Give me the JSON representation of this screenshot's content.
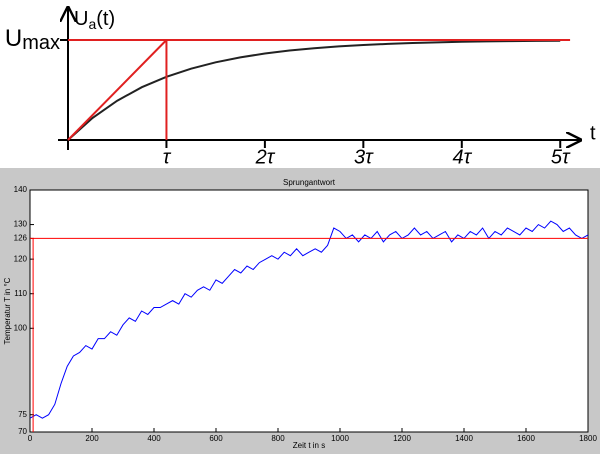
{
  "chart_data": [
    {
      "type": "line",
      "x_label": "t",
      "y_label": "U",
      "y_label_subscript": "a",
      "y_label_suffix": "(t)",
      "xlim": [
        0,
        5.15
      ],
      "ylim": [
        0,
        1.3
      ],
      "xticks": [
        {
          "value": 1,
          "label": "τ"
        },
        {
          "value": 2,
          "label": "2τ"
        },
        {
          "value": 3,
          "label": "3τ"
        },
        {
          "value": 4,
          "label": "4τ"
        },
        {
          "value": 5,
          "label": "5τ"
        }
      ],
      "yticks": [
        {
          "value": 1,
          "label": "U",
          "label_subscript": "max"
        }
      ],
      "grid": false,
      "series": [
        {
          "color": "#222222",
          "x": [
            0,
            0.25,
            0.5,
            0.75,
            1,
            1.25,
            1.5,
            1.75,
            2,
            2.25,
            2.5,
            2.75,
            3,
            3.25,
            3.5,
            3.75,
            4,
            4.25,
            4.5,
            4.75,
            5
          ],
          "values": [
            0,
            0.221,
            0.393,
            0.528,
            0.632,
            0.713,
            0.777,
            0.826,
            0.865,
            0.895,
            0.918,
            0.936,
            0.95,
            0.961,
            0.97,
            0.976,
            0.982,
            0.986,
            0.989,
            0.991,
            0.993
          ]
        },
        {
          "color": "#e02020",
          "x": [
            0,
            5.1
          ],
          "values": [
            1,
            1
          ]
        },
        {
          "color": "#e02020",
          "x": [
            0,
            1
          ],
          "values": [
            0,
            1
          ]
        },
        {
          "color": "#e02020",
          "x": [
            1,
            1
          ],
          "values": [
            0,
            1
          ]
        }
      ]
    },
    {
      "type": "line",
      "title": "Sprungantwort",
      "x_label": "Zeit t in s",
      "y_label": "Temperatur T in °C",
      "xlim": [
        0,
        1800
      ],
      "ylim": [
        70,
        140
      ],
      "xticks": [
        0,
        200,
        400,
        600,
        800,
        1000,
        1200,
        1400,
        1600,
        1800
      ],
      "yticks": [
        70,
        75,
        100,
        110,
        120,
        126,
        130,
        140
      ],
      "grid": false,
      "series": [
        {
          "color": "#0000ff",
          "x": [
            0,
            20,
            40,
            60,
            80,
            100,
            120,
            140,
            160,
            180,
            200,
            220,
            240,
            260,
            280,
            300,
            320,
            340,
            360,
            380,
            400,
            420,
            440,
            460,
            480,
            500,
            520,
            540,
            560,
            580,
            600,
            620,
            640,
            660,
            680,
            700,
            720,
            740,
            760,
            780,
            800,
            820,
            840,
            860,
            880,
            900,
            920,
            940,
            960,
            980,
            1000,
            1020,
            1040,
            1060,
            1080,
            1100,
            1120,
            1140,
            1160,
            1180,
            1200,
            1220,
            1240,
            1260,
            1280,
            1300,
            1320,
            1340,
            1360,
            1380,
            1400,
            1420,
            1440,
            1460,
            1480,
            1500,
            1520,
            1540,
            1560,
            1580,
            1600,
            1620,
            1640,
            1660,
            1680,
            1700,
            1720,
            1740,
            1760,
            1780,
            1800
          ],
          "values": [
            74,
            75,
            74,
            75,
            78,
            84,
            89,
            92,
            93,
            95,
            94,
            97,
            97,
            99,
            98,
            101,
            103,
            102,
            105,
            104,
            106,
            106,
            107,
            108,
            107,
            110,
            109,
            111,
            112,
            111,
            114,
            113,
            115,
            117,
            116,
            118,
            117,
            119,
            120,
            121,
            120,
            122,
            121,
            123,
            121,
            122,
            123,
            122,
            124,
            129,
            128,
            126,
            127,
            125,
            127,
            126,
            128,
            125,
            127,
            128,
            126,
            127,
            129,
            127,
            128,
            126,
            127,
            128,
            125,
            127,
            126,
            128,
            127,
            129,
            126,
            128,
            127,
            129,
            128,
            127,
            129,
            128,
            130,
            129,
            131,
            130,
            128,
            129,
            127,
            126,
            127
          ]
        },
        {
          "color": "#ff0000",
          "x": [
            0,
            1800
          ],
          "values": [
            126,
            126
          ]
        },
        {
          "color": "#ff0000",
          "x": [
            10,
            10
          ],
          "values": [
            70,
            126
          ]
        }
      ]
    }
  ]
}
